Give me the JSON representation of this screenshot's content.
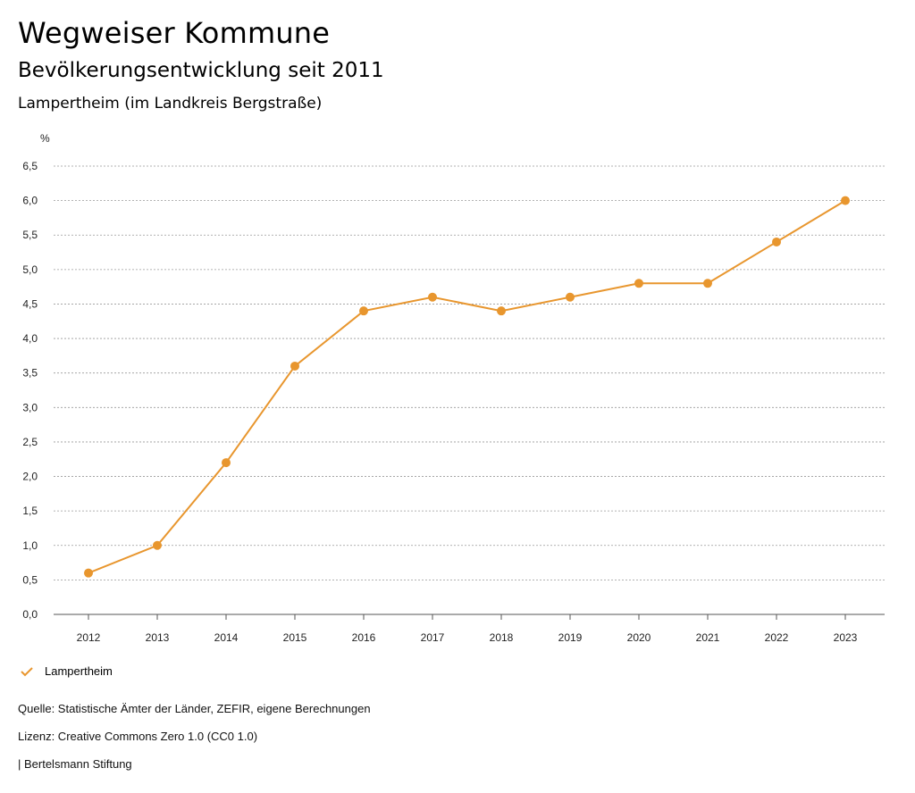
{
  "header": {
    "title": "Wegweiser Kommune",
    "subtitle": "Bevölkerungsentwicklung seit 2011",
    "region": "Lampertheim (im Landkreis Bergstraße)"
  },
  "chart_data": {
    "type": "line",
    "ylabel": "%",
    "xlabel": "",
    "x": [
      "2012",
      "2013",
      "2014",
      "2015",
      "2016",
      "2017",
      "2018",
      "2019",
      "2020",
      "2021",
      "2022",
      "2023"
    ],
    "series": [
      {
        "name": "Lampertheim",
        "color": "#E8962E",
        "values": [
          0.6,
          1.0,
          2.2,
          3.6,
          4.4,
          4.6,
          4.4,
          4.6,
          4.8,
          4.8,
          5.4,
          6.0
        ]
      }
    ],
    "ylim": [
      0,
      6.5
    ],
    "yticks": [
      "0,0",
      "0,5",
      "1,0",
      "1,5",
      "2,0",
      "2,5",
      "3,0",
      "3,5",
      "4,0",
      "4,5",
      "5,0",
      "5,5",
      "6,0",
      "6,5"
    ],
    "grid": true,
    "legend_position": "bottom-left"
  },
  "legend": {
    "label": "Lampertheim",
    "icon": "check-icon"
  },
  "footer": {
    "source": "Quelle: Statistische Ämter der Länder, ZEFIR, eigene Berechnungen",
    "license": "Lizenz: Creative Commons Zero 1.0 (CC0 1.0)",
    "publisher": "| Bertelsmann Stiftung"
  }
}
